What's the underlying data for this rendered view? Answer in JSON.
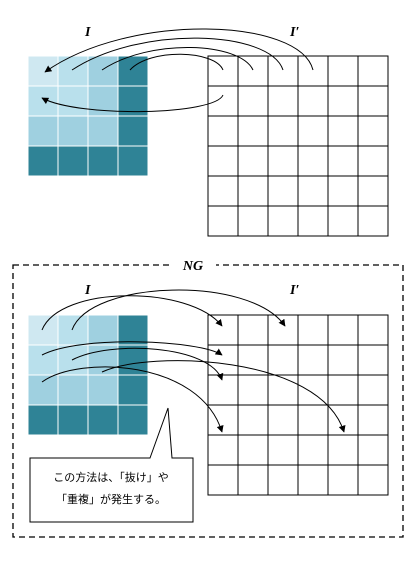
{
  "top": {
    "source_label": "I",
    "target_label": "I′"
  },
  "bottom": {
    "frame_title": "NG",
    "source_label": "I",
    "target_label": "I′",
    "callout": {
      "line1": "この方法は、「抜け」や",
      "line2": "「重複」が発生する。"
    }
  },
  "colors": {
    "light": "#cfe8f1",
    "light2": "#b9e0ec",
    "mid": "#9fd0e0",
    "dark": "#2f8396",
    "grid_line": "#000000"
  },
  "source_grid": {
    "rows": 4,
    "cols": 4,
    "shades": [
      [
        "light",
        "light2",
        "mid",
        "dark"
      ],
      [
        "light2",
        "light2",
        "mid",
        "dark"
      ],
      [
        "mid",
        "mid",
        "mid",
        "dark"
      ],
      [
        "dark",
        "dark",
        "dark",
        "dark"
      ]
    ]
  },
  "target_grid": {
    "rows": 6,
    "cols": 6
  }
}
